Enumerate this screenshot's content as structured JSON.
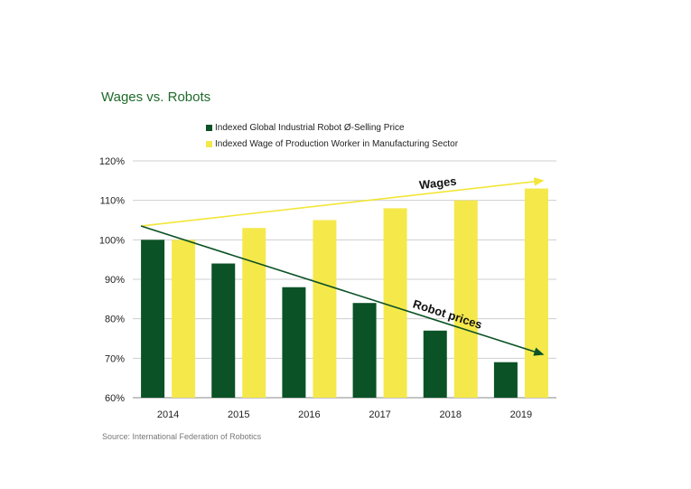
{
  "chart_data": {
    "type": "bar",
    "title": "Wages vs. Robots",
    "categories": [
      "2014",
      "2015",
      "2016",
      "2017",
      "2018",
      "2019"
    ],
    "series": [
      {
        "name": "Indexed Global Industrial Robot Ø-Selling Price",
        "color": "#0b5226",
        "values": [
          100,
          94,
          88,
          84,
          77,
          69
        ]
      },
      {
        "name": "Indexed Wage of Production Worker in Manufacturing Sector",
        "color": "#f5e84b",
        "values": [
          100,
          103,
          105,
          108,
          110,
          113
        ]
      }
    ],
    "y_ticks": [
      "60%",
      "70%",
      "80%",
      "90%",
      "100%",
      "110%",
      "120%"
    ],
    "ylim": [
      60,
      120
    ],
    "grid": true,
    "legend_position": "top-left",
    "annotations": [
      {
        "text": "Wages",
        "color": "#f2e637",
        "from": {
          "x": "2014",
          "y": 103.5
        },
        "to": {
          "x": "2019",
          "y": 115
        }
      },
      {
        "text": "Robot prices",
        "color": "#0b5226",
        "from": {
          "x": "2014",
          "y": 103.5
        },
        "to": {
          "x": "2019",
          "y": 71
        }
      }
    ],
    "source": "Source: International Federation of Robotics"
  }
}
